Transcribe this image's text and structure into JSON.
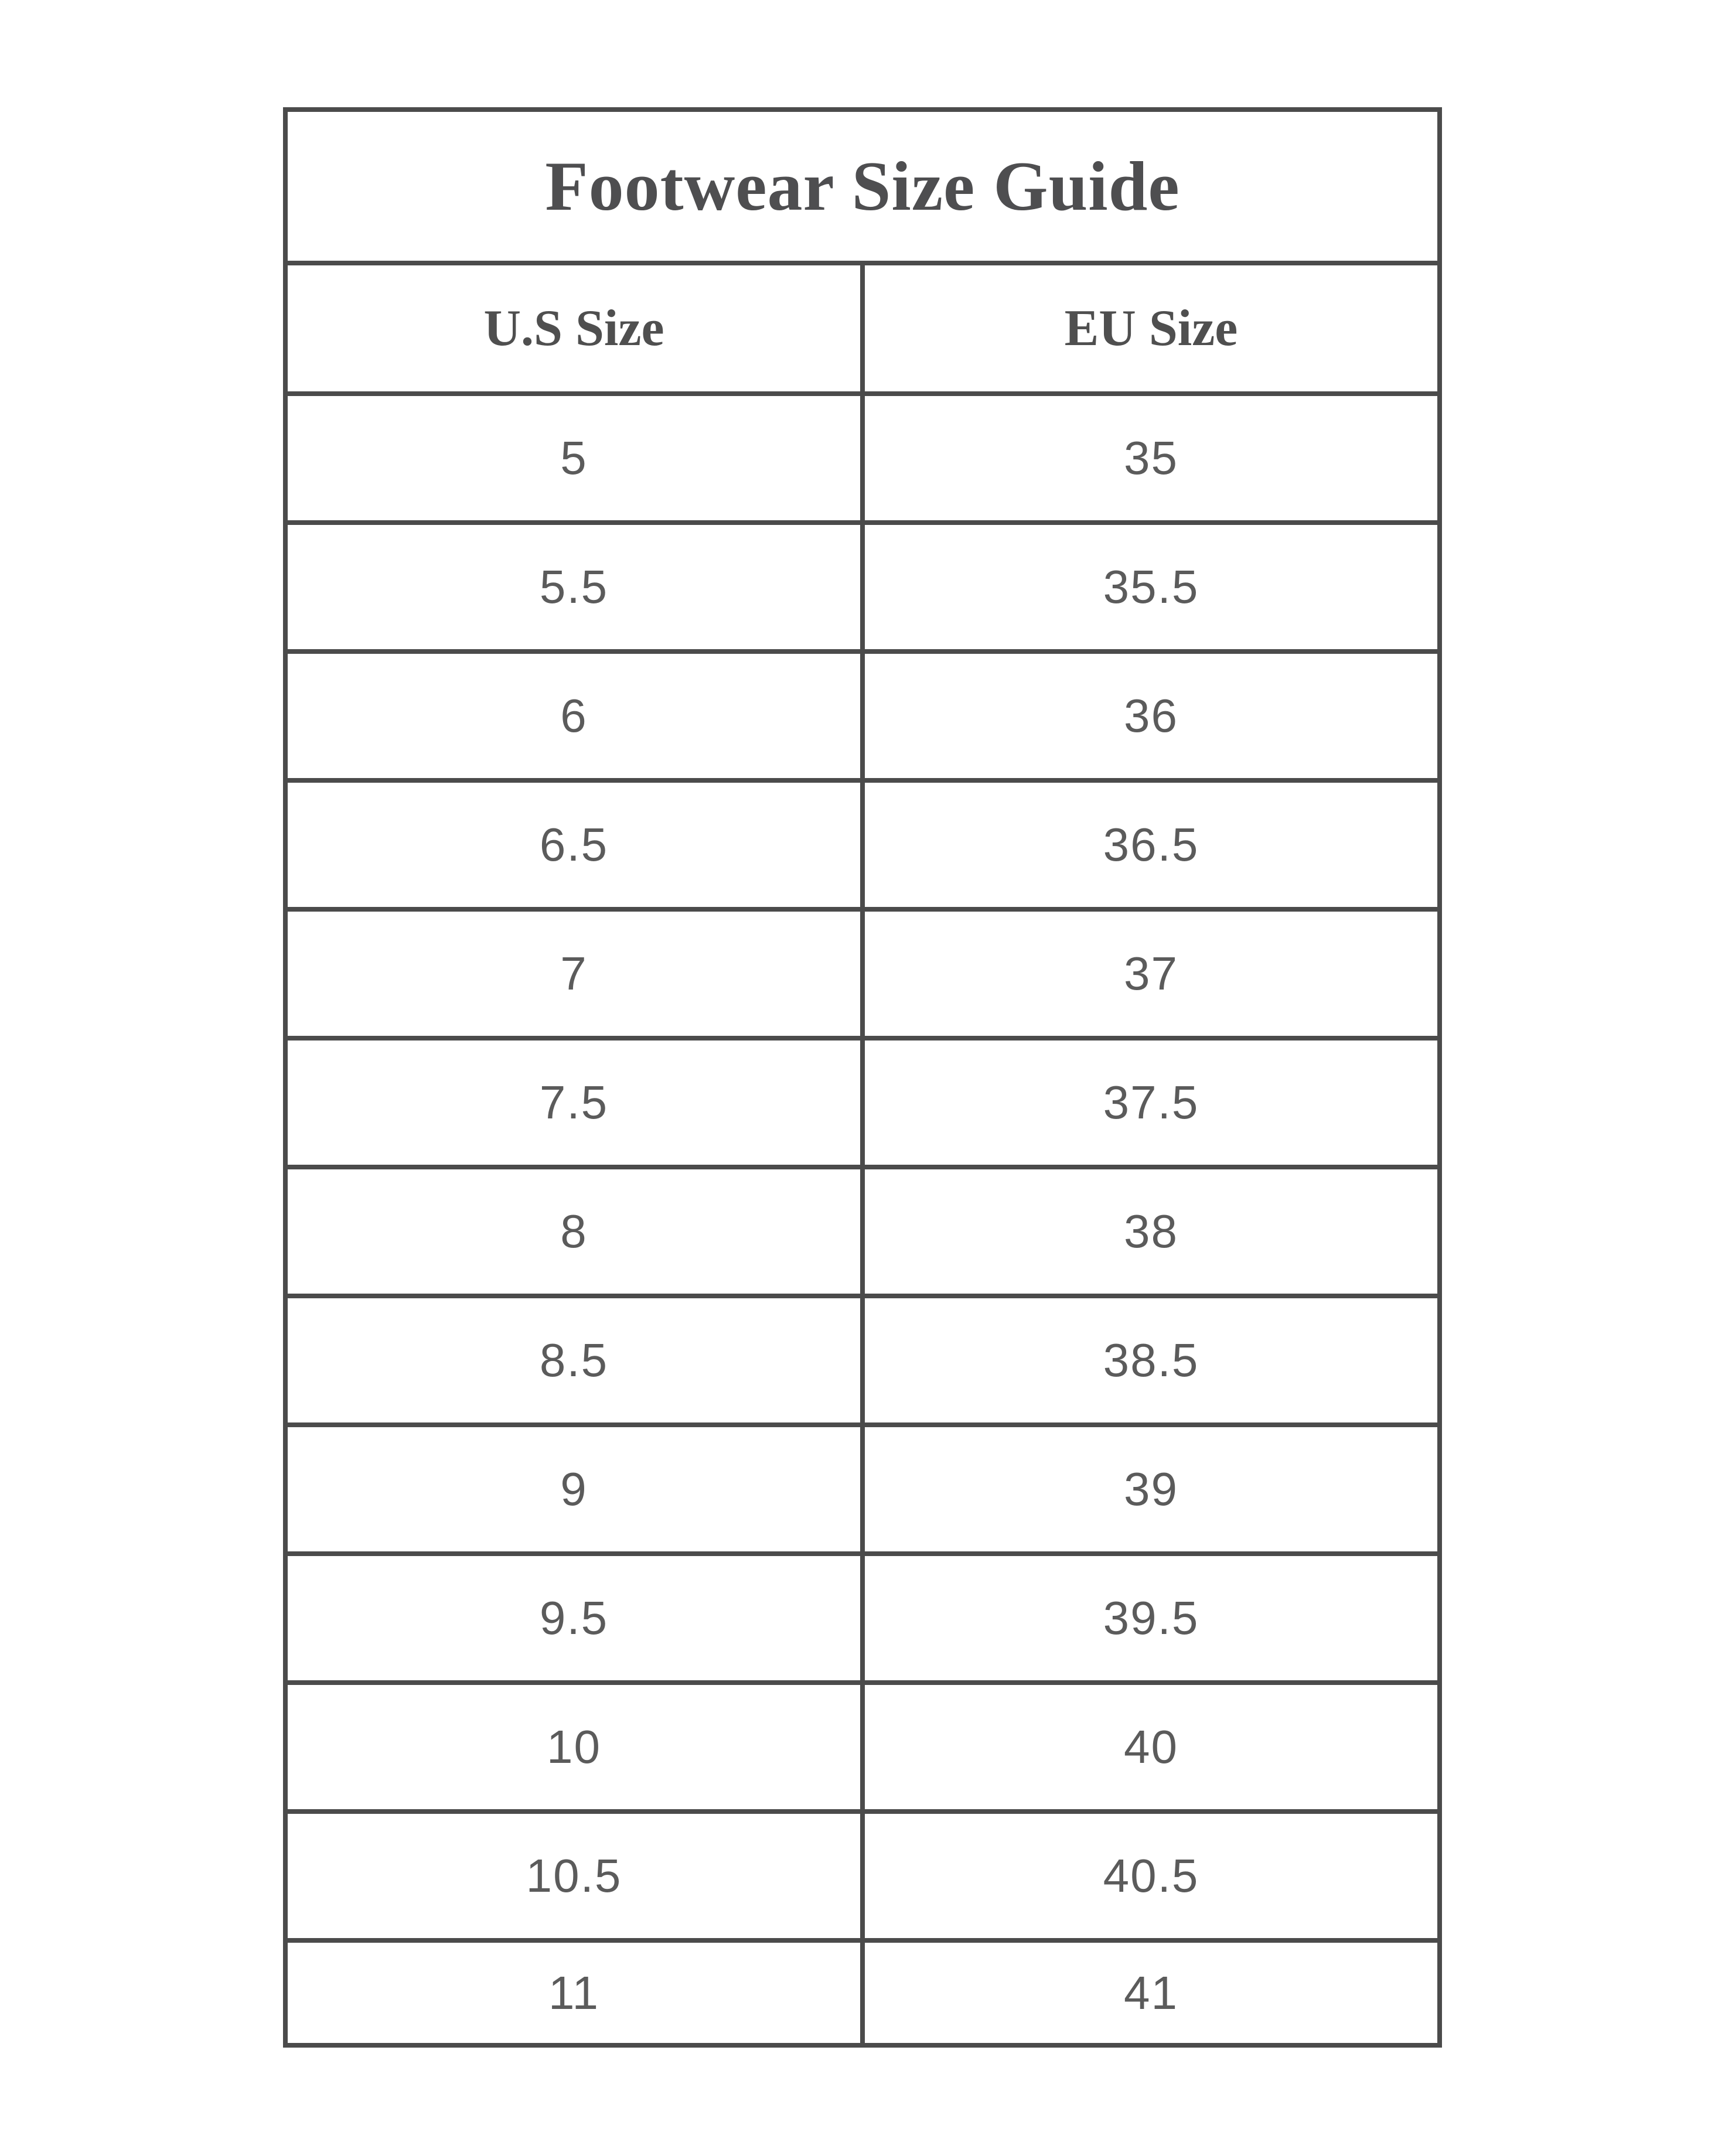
{
  "table": {
    "title": "Footwear Size Guide",
    "columns": [
      "U.S Size",
      "EU Size"
    ],
    "rows": [
      {
        "us": "5",
        "eu": "35"
      },
      {
        "us": "5.5",
        "eu": "35.5"
      },
      {
        "us": "6",
        "eu": "36"
      },
      {
        "us": "6.5",
        "eu": "36.5"
      },
      {
        "us": "7",
        "eu": "37"
      },
      {
        "us": "7.5",
        "eu": "37.5"
      },
      {
        "us": "8",
        "eu": "38"
      },
      {
        "us": "8.5",
        "eu": "38.5"
      },
      {
        "us": "9",
        "eu": "39"
      },
      {
        "us": "9.5",
        "eu": "39.5"
      },
      {
        "us": "10",
        "eu": "40"
      },
      {
        "us": "10.5",
        "eu": "40.5"
      },
      {
        "us": "11",
        "eu": "41"
      }
    ],
    "colors": {
      "border": "#4b4b4b",
      "title_text": "#4e4e50",
      "header_text": "#4f4f4f",
      "number_text": "#5b5b5b",
      "background": "#ffffff"
    }
  }
}
